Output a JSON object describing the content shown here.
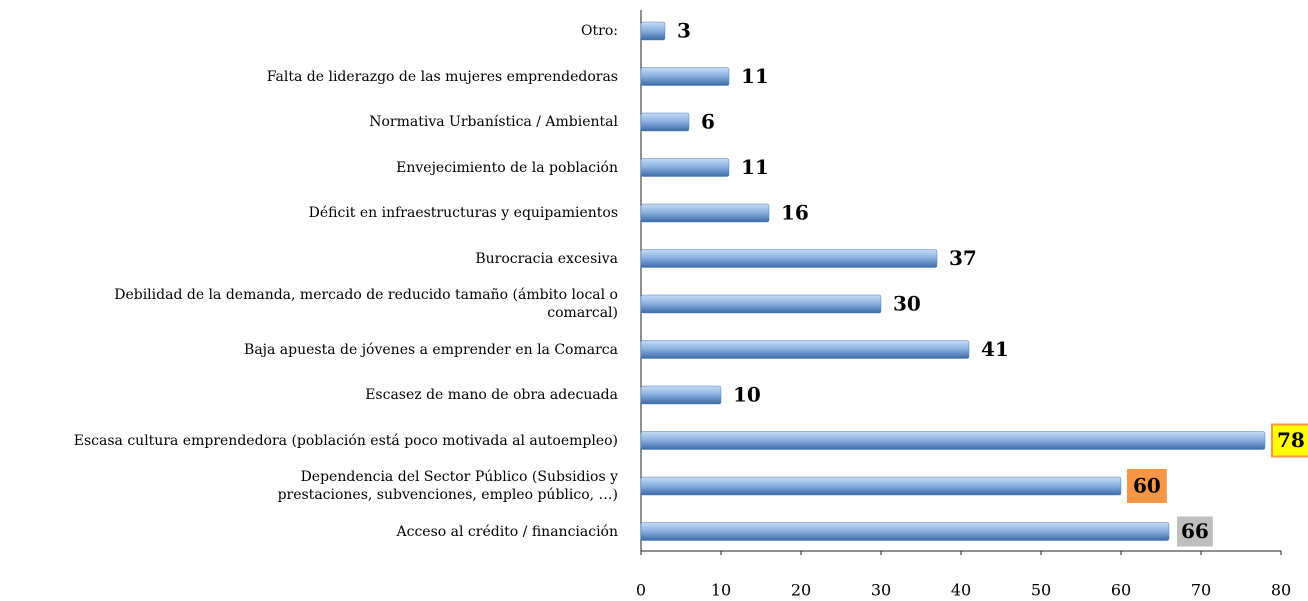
{
  "chart_data": {
    "type": "barh",
    "categories": [
      "Otro:",
      "Falta de liderazgo de las mujeres emprendedoras",
      "Normativa Urbanística / Ambiental",
      "Envejecimiento de la población",
      "Déficit en infraestructuras y equipamientos",
      "Burocracia excesiva",
      "Debilidad de la demanda, mercado de reducido tamaño (ámbito local o\ncomarcal)",
      "Baja apuesta de jóvenes a emprender en la Comarca",
      "Escasez de mano de obra adecuada",
      "Escasa cultura emprendedora (población está poco motivada al autoempleo)",
      "Dependencia del Sector Público (Subsidios y \nprestaciones, subvenciones, empleo público, …)",
      "Acceso al crédito / financiación"
    ],
    "values": [
      3,
      11,
      6,
      11,
      16,
      37,
      30,
      41,
      10,
      78,
      60,
      66
    ],
    "color": "#4f81bd",
    "label_fills": [
      null,
      null,
      null,
      null,
      null,
      null,
      null,
      null,
      null,
      "#ffff00",
      "#f79646",
      "#bfbfbf"
    ],
    "label_strokes": [
      null,
      null,
      null,
      null,
      null,
      null,
      null,
      null,
      null,
      "#f79646",
      "#f79646",
      "#ffffff"
    ],
    "xlim": [
      0,
      80
    ],
    "xticks": [
      0,
      10,
      20,
      30,
      40,
      50,
      60,
      70,
      80
    ]
  }
}
